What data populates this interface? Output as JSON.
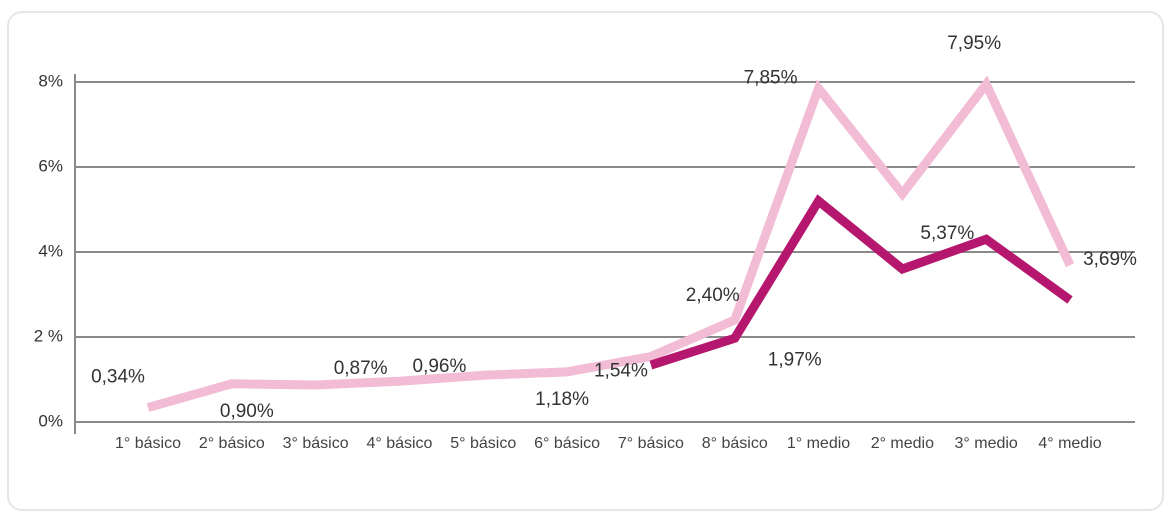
{
  "chart_data": {
    "type": "line",
    "categories": [
      "1° básico",
      "2° básico",
      "3° básico",
      "4° básico",
      "5° básico",
      "6° básico",
      "7° básico",
      "8° básico",
      "1° medio",
      "2° medio",
      "3° medio",
      "4° medio"
    ],
    "series": [
      {
        "color": "#f2bcd4",
        "values": [
          0.34,
          0.9,
          0.87,
          0.96,
          1.1,
          1.18,
          1.54,
          2.4,
          7.85,
          5.37,
          7.95,
          3.69
        ],
        "value_labels": [
          "0,34%",
          "0,90%",
          "0,87%",
          "0,96%",
          null,
          "1,18%",
          "1,54%",
          "2,40%",
          "7,85%",
          "5,37%",
          "7,95%",
          "3,69%"
        ]
      },
      {
        "color": "#b5176f",
        "values": [
          null,
          null,
          null,
          null,
          null,
          null,
          1.34,
          1.97,
          5.2,
          3.6,
          4.3,
          2.87
        ],
        "value_labels": [
          null,
          null,
          null,
          null,
          null,
          null,
          null,
          "1,97%",
          null,
          null,
          null,
          null
        ]
      }
    ],
    "ylim": [
      0,
      8
    ],
    "yticks": [
      {
        "value": 0,
        "label": "0%"
      },
      {
        "value": 2,
        "label": "2 %"
      },
      {
        "value": 4,
        "label": "4%"
      },
      {
        "value": 6,
        "label": "6%"
      },
      {
        "value": 8,
        "label": "8%"
      }
    ],
    "grid": true
  }
}
